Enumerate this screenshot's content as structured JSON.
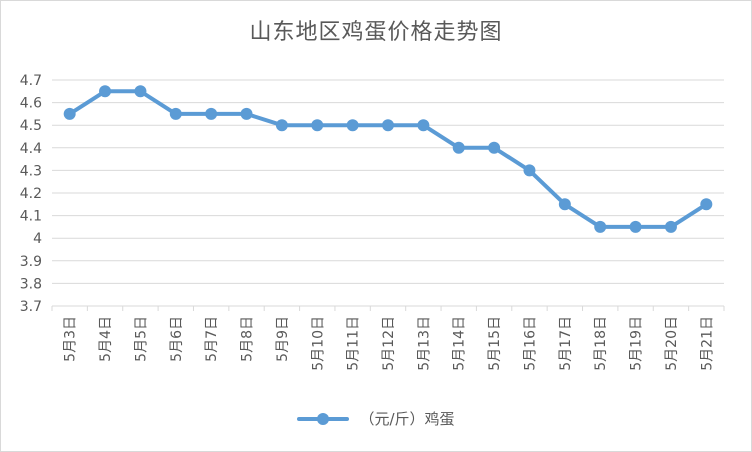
{
  "chart_data": {
    "type": "line",
    "title": "山东地区鸡蛋价格走势图",
    "categories": [
      "5月3日",
      "5月4日",
      "5月5日",
      "5月6日",
      "5月7日",
      "5月8日",
      "5月9日",
      "5月10日",
      "5月11日",
      "5月12日",
      "5月13日",
      "5月14日",
      "5月15日",
      "5月16日",
      "5月17日",
      "5月18日",
      "5月19日",
      "5月20日",
      "5月21日"
    ],
    "series": [
      {
        "name": "（元/斤）鸡蛋",
        "values": [
          4.55,
          4.65,
          4.65,
          4.55,
          4.55,
          4.55,
          4.5,
          4.5,
          4.5,
          4.5,
          4.5,
          4.4,
          4.4,
          4.3,
          4.15,
          4.05,
          4.05,
          4.05,
          4.15
        ],
        "color": "#5b9bd5"
      }
    ],
    "ylim": [
      3.7,
      4.7
    ],
    "yticks": [
      "3.7",
      "3.8",
      "3.9",
      "4",
      "4.1",
      "4.2",
      "4.3",
      "4.4",
      "4.5",
      "4.6",
      "4.7"
    ],
    "grid": true,
    "legend": "bottom"
  }
}
